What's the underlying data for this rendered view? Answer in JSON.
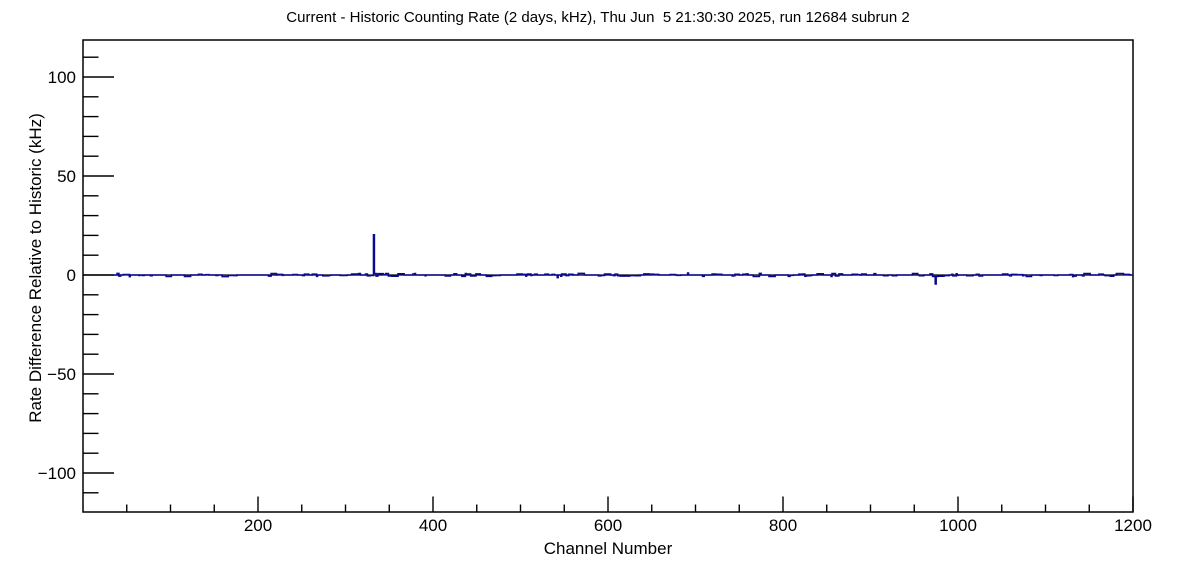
{
  "window": {
    "background_color": "#ffffff"
  },
  "chart_data": {
    "type": "line",
    "subtype": "histogram-step",
    "title": "Current - Historic Counting Rate (2 days, kHz), Thu Jun  5 21:30:30 2025, run 12684 subrun 2",
    "xlabel": "Channel Number",
    "ylabel": "Rate Difference Relative to Historic (kHz)",
    "xlim": [
      0,
      1200
    ],
    "ylim": [
      -119.7,
      118.7
    ],
    "grid": false,
    "legend": false,
    "frame_color": "#000000",
    "x_axis": {
      "major_ticks": [
        200,
        400,
        600,
        800,
        1000,
        1200
      ],
      "major_tick_labels": [
        "200",
        "400",
        "600",
        "800",
        "1000",
        "1200"
      ],
      "minor_tick_step": 50
    },
    "y_axis": {
      "major_ticks": [
        -100,
        -50,
        0,
        50,
        100
      ],
      "major_tick_labels": [
        "−100",
        "−50",
        "0",
        "50",
        "100"
      ],
      "minor_tick_step": 10
    },
    "zero_line": {
      "value_khz": 0,
      "color": "#000000"
    },
    "series": [
      {
        "name": "current-minus-historic-rate",
        "color": "#0a0a90",
        "baseline_khz": 0,
        "noise_amplitude_khz": 0.9,
        "first_channel_with_data": 35,
        "last_channel": 1200,
        "notable_points": [
          {
            "channel": 333,
            "value_khz": 20.3
          },
          {
            "channel": 543,
            "value_khz": -1.3
          },
          {
            "channel": 692,
            "value_khz": 1.0
          },
          {
            "channel": 975,
            "value_khz": -4.5
          }
        ]
      }
    ]
  }
}
